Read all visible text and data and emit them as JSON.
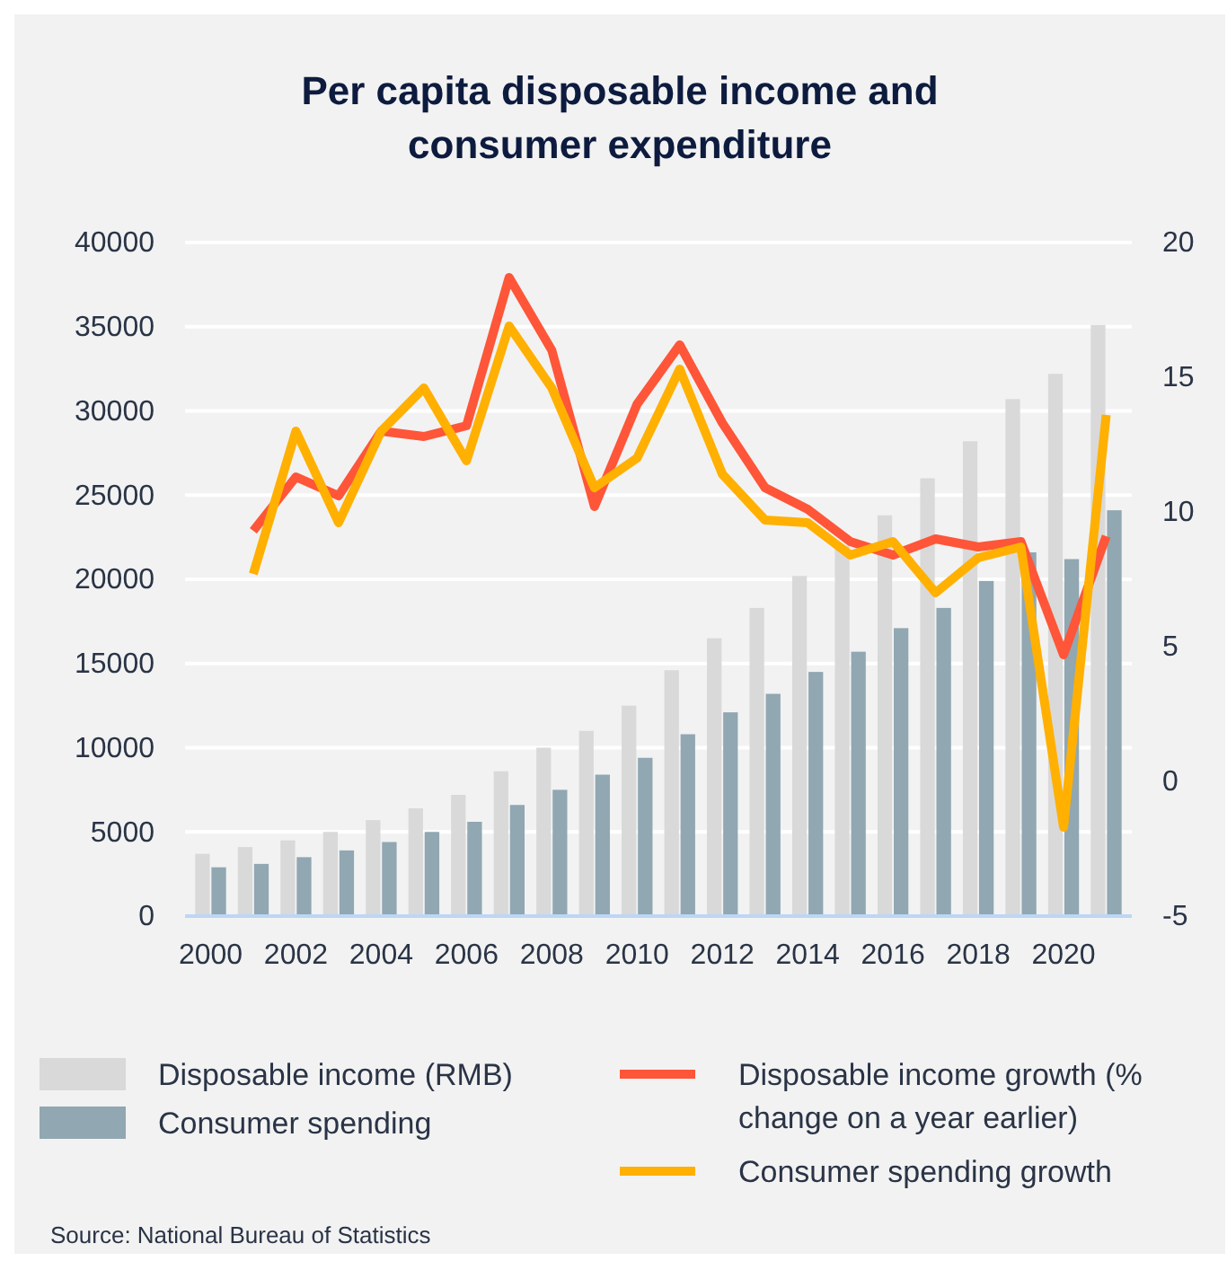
{
  "chart_data": {
    "type": "bar",
    "title": "Per capita disposable income and consumer expenditure",
    "categories": [
      "2000",
      null,
      "2002",
      null,
      "2004",
      null,
      "2006",
      null,
      "2008",
      null,
      "2010",
      null,
      "2012",
      null,
      "2014",
      null,
      "2016",
      null,
      "2018",
      null,
      "2020",
      null
    ],
    "series": [
      {
        "name": "Disposable income (RMB)",
        "color": "#d9d9d9",
        "values": [
          3700,
          4100,
          4500,
          5000,
          5700,
          6400,
          7200,
          8600,
          10000,
          11000,
          12500,
          14600,
          16500,
          18300,
          20200,
          22000,
          23800,
          26000,
          28200,
          30700,
          32200,
          35100
        ]
      },
      {
        "name": "Consumer spending",
        "color": "#91a7b2",
        "values": [
          2900,
          3100,
          3500,
          3900,
          4400,
          5000,
          5600,
          6600,
          7500,
          8400,
          9400,
          10800,
          12100,
          13200,
          14500,
          15700,
          17100,
          18300,
          19900,
          21600,
          21200,
          24100
        ]
      },
      {
        "name": "Disposable income growth (% change on a year earlier)",
        "type": "line",
        "axis": "y2",
        "color": "#ff5538",
        "values": [
          null,
          9.3,
          11.3,
          10.6,
          13.0,
          12.8,
          13.2,
          18.7,
          16.0,
          10.2,
          14.0,
          16.2,
          13.3,
          10.9,
          10.1,
          8.9,
          8.4,
          9.0,
          8.7,
          8.9,
          4.7,
          9.1
        ]
      },
      {
        "name": "Consumer spending growth",
        "type": "line",
        "axis": "y2",
        "color": "#ffb000",
        "values": [
          null,
          7.7,
          13.0,
          9.6,
          13.0,
          14.6,
          11.9,
          16.9,
          14.6,
          10.9,
          12.0,
          15.3,
          11.4,
          9.7,
          9.6,
          8.4,
          8.9,
          7.0,
          8.3,
          8.7,
          -1.7,
          13.6
        ]
      }
    ],
    "ylim": [
      0,
      40000
    ],
    "yticks": [
      0,
      5000,
      10000,
      15000,
      20000,
      25000,
      30000,
      35000,
      40000
    ],
    "y2lim": [
      -5,
      20
    ],
    "y2ticks": [
      -5,
      0,
      5,
      10,
      15,
      20
    ],
    "grid": "y",
    "legend": "bottom",
    "marker": "none",
    "line_style": "solid",
    "annotations": [
      "Source: National Bureau of Statistics"
    ]
  }
}
